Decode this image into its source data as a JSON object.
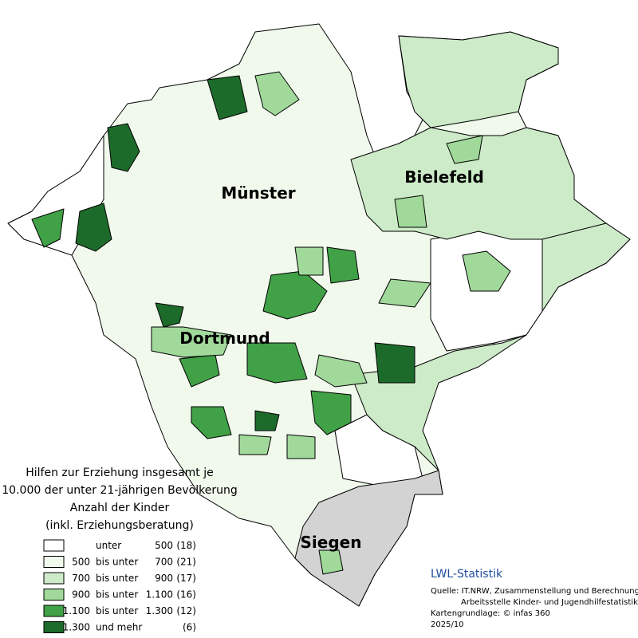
{
  "cities": [
    {
      "name": "Münster"
    },
    {
      "name": "Bielefeld"
    },
    {
      "name": "Dortmund"
    },
    {
      "name": "Siegen"
    }
  ],
  "legend_title": [
    "Hilfen zur Erziehung insgesamt je",
    "10.000 der unter 21-jährigen Bevölkerung",
    "Anzahl der Kinder",
    "(inkl. Erziehungsberatung)"
  ],
  "legend": [
    {
      "relation": "unter",
      "to": "500",
      "count": "(18)",
      "color": "#ffffff"
    },
    {
      "from": "500",
      "relation": "bis unter",
      "to": "700",
      "count": "(21)",
      "color": "#f0f9ec"
    },
    {
      "from": "700",
      "relation": "bis unter",
      "to": "900",
      "count": "(17)",
      "color": "#cdebc8"
    },
    {
      "from": "900",
      "relation": "bis unter",
      "to": "1.100",
      "count": "(16)",
      "color": "#a1d99b"
    },
    {
      "from": "1.100",
      "relation": "bis unter",
      "to": "1.300",
      "count": "(12)",
      "color": "#41a147"
    },
    {
      "from": "1.300",
      "relation": "und mehr",
      "count": "(6)",
      "color": "#1d6b2a"
    }
  ],
  "source": {
    "brand": "LWL-Statistik",
    "lines": [
      "Quelle: IT.NRW,  Zusammenstellung und Berechnung",
      "Arbeitsstelle Kinder- und Jugendhilfestatistik",
      "Kartengrundlage: © infas 360",
      "2025/10"
    ]
  }
}
